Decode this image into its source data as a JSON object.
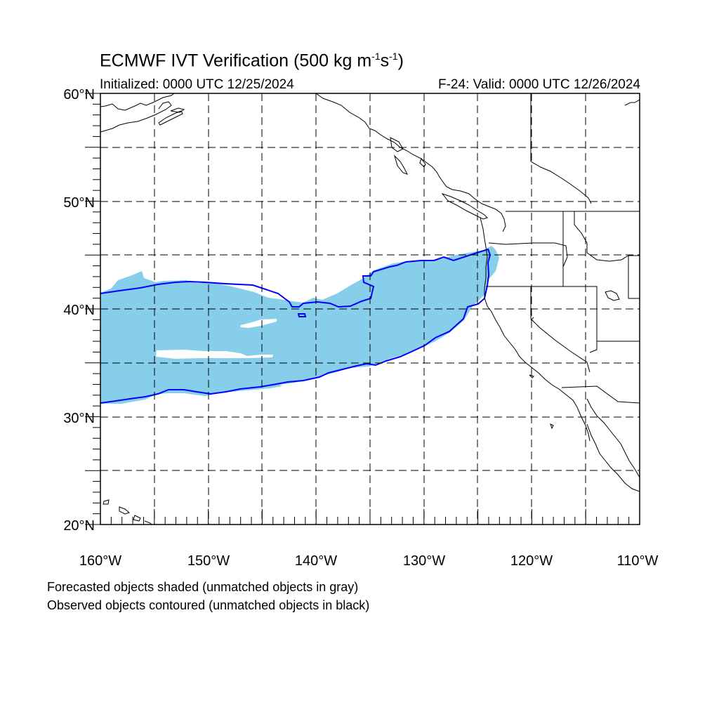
{
  "title": {
    "main": "ECMWF IVT Verification (500 kg m",
    "sup1": "-1",
    "mid": "s",
    "sup2": "-1",
    "end": ")"
  },
  "subtitle_left": "Initialized: 0000 UTC 12/25/2024",
  "subtitle_right": "F-24: Valid: 0000 UTC 12/26/2024",
  "notes": [
    "Forecasted objects shaded (unmatched objects in gray)",
    "Observed objects contoured (unmatched objects in black)"
  ],
  "map": {
    "lon_range": [
      -160,
      -110
    ],
    "lat_range": [
      20,
      60
    ],
    "lon_ticks": [
      "160°W",
      "150°W",
      "140°W",
      "130°W",
      "120°W",
      "110°W"
    ],
    "lat_ticks": [
      "20°N",
      "30°N",
      "40°N",
      "50°N",
      "60°N"
    ],
    "grid_style": "dashed",
    "colors": {
      "forecast_fill": "#87ceeb",
      "observed_contour": "#0000ff",
      "coastline": "#000000"
    }
  }
}
